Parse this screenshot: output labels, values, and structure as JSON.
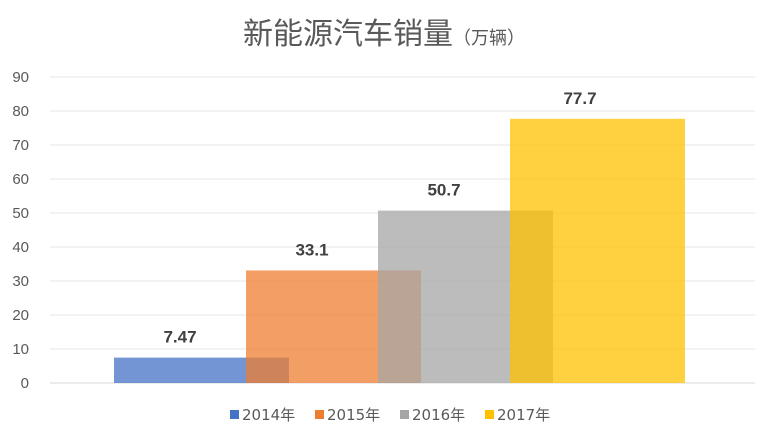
{
  "chart_data": {
    "type": "bar",
    "title": "新能源汽车销量",
    "title_unit": "（万辆）",
    "xlabel": "",
    "ylabel": "",
    "ylim": [
      0,
      90
    ],
    "yticks": [
      0,
      10,
      20,
      30,
      40,
      50,
      60,
      70,
      80,
      90
    ],
    "grid": true,
    "legend_position": "bottom",
    "series": [
      {
        "name": "2014年",
        "value": 7.47,
        "label": "7.47",
        "color": "#4472C4"
      },
      {
        "name": "2015年",
        "value": 33.1,
        "label": "33.1",
        "color": "#ED7D31"
      },
      {
        "name": "2016年",
        "value": 50.7,
        "label": "50.7",
        "color": "#A5A5A5"
      },
      {
        "name": "2017年",
        "value": 77.7,
        "label": "77.7",
        "color": "#FFC000"
      }
    ]
  }
}
